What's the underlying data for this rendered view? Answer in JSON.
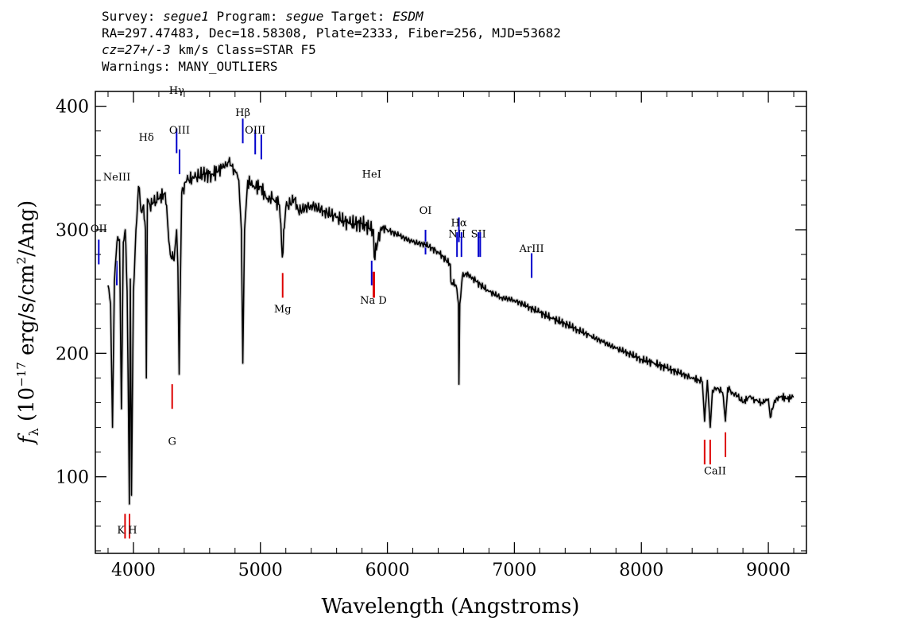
{
  "header": {
    "line1_prefix": "Survey: ",
    "survey": "segue1",
    "line1_mid": " Program: ",
    "program": "segue",
    "line1_mid2": " Target: ",
    "target": "ESDM",
    "line2": "RA=297.47483, Dec=18.58308, Plate=2333, Fiber=256, MJD=53682",
    "line3_cz": "cz=27+/-3",
    "line3_rest": " km/s Class=STAR F5",
    "line4": "Warnings: MANY_OUTLIERS"
  },
  "chart_data": {
    "type": "line",
    "xlabel": "Wavelength (Angstroms)",
    "ylabel_parts": [
      "f",
      "λ",
      " (10",
      "−17",
      " erg/s/cm",
      "2",
      "/Ang)"
    ],
    "xlim": [
      3700,
      9300
    ],
    "ylim": [
      38,
      412
    ],
    "x_ticks": [
      4000,
      5000,
      6000,
      7000,
      8000,
      9000
    ],
    "x_tick_labels": [
      "4000",
      "5000",
      "6000",
      "7000",
      "8000",
      "9000"
    ],
    "y_ticks": [
      100,
      200,
      300,
      400
    ],
    "y_tick_labels": [
      "100",
      "200",
      "300",
      "400"
    ],
    "grid": false,
    "series": [
      {
        "color": "#000000",
        "x": [
          3800,
          3820,
          3835,
          3850,
          3870,
          3890,
          3905,
          3920,
          3935,
          3950,
          3960,
          3968,
          3975,
          3985,
          4000,
          4020,
          4040,
          4060,
          4080,
          4095,
          4102,
          4110,
          4130,
          4160,
          4200,
          4250,
          4290,
          4320,
          4340,
          4350,
          4360,
          4380,
          4420,
          4480,
          4550,
          4620,
          4700,
          4750,
          4800,
          4830,
          4850,
          4861,
          4875,
          4900,
          4950,
          5000,
          5050,
          5100,
          5150,
          5172,
          5200,
          5270,
          5300,
          5400,
          5500,
          5600,
          5700,
          5800,
          5890,
          5896,
          5950,
          6000,
          6100,
          6200,
          6300,
          6400,
          6495,
          6500,
          6540,
          6560,
          6563,
          6570,
          6590,
          6620,
          6700,
          6800,
          6900,
          7000,
          7100,
          7200,
          7300,
          7400,
          7500,
          7600,
          7700,
          7800,
          7900,
          8000,
          8100,
          8200,
          8300,
          8400,
          8480,
          8498,
          8520,
          8542,
          8560,
          8600,
          8640,
          8662,
          8680,
          8720,
          8760,
          8800,
          8850,
          8900,
          8950,
          9000,
          9015,
          9050,
          9100,
          9150,
          9200
        ],
        "y": [
          255,
          240,
          140,
          258,
          290,
          292,
          155,
          290,
          300,
          250,
          160,
          78,
          260,
          85,
          250,
          300,
          335,
          315,
          320,
          300,
          180,
          325,
          320,
          322,
          325,
          330,
          280,
          275,
          300,
          270,
          183,
          330,
          340,
          342,
          345,
          345,
          350,
          355,
          348,
          340,
          300,
          192,
          300,
          340,
          335,
          335,
          325,
          325,
          320,
          278,
          318,
          325,
          315,
          320,
          315,
          310,
          305,
          305,
          300,
          278,
          302,
          300,
          295,
          290,
          288,
          282,
          272,
          258,
          255,
          240,
          175,
          240,
          262,
          265,
          258,
          250,
          245,
          243,
          238,
          233,
          228,
          224,
          219,
          214,
          209,
          204,
          200,
          195,
          192,
          188,
          184,
          180,
          177,
          145,
          178,
          140,
          170,
          172,
          168,
          145,
          172,
          168,
          165,
          160,
          165,
          162,
          160,
          163,
          148,
          162,
          165,
          163,
          165
        ]
      }
    ],
    "emission_lines": [
      {
        "label": "OII",
        "x": 3727
      },
      {
        "label": "NeIII",
        "x": 3869
      },
      {
        "label": "Hδ",
        "x": 4102
      },
      {
        "label": "Hγ",
        "x": 4340
      },
      {
        "label": "OIII",
        "x": 4363
      },
      {
        "label": "Hβ",
        "x": 4861
      },
      {
        "label": "OIII",
        "x": 4959
      },
      {
        "label": "OIII",
        "x": 5007
      },
      {
        "label": "HeI",
        "x": 5876
      },
      {
        "label": "OI",
        "x": 6300
      },
      {
        "label": "NII",
        "x": 6548
      },
      {
        "label": "Hα",
        "x": 6563
      },
      {
        "label": "NII",
        "x": 6583
      },
      {
        "label": "SII",
        "x": 6717
      },
      {
        "label": "SII",
        "x": 6731
      },
      {
        "label": "ArIII",
        "x": 7136
      }
    ],
    "absorption_lines": [
      {
        "label": "K",
        "x": 3934
      },
      {
        "label": "H",
        "x": 3969
      },
      {
        "label": "G",
        "x": 4305
      },
      {
        "label": "Mg",
        "x": 5175
      },
      {
        "label": "Na",
        "x": 5890
      },
      {
        "label": "D",
        "x": 5896
      },
      {
        "label": "CaII",
        "x": 8498
      },
      {
        "label": "CaII",
        "x": 8542
      },
      {
        "label": "CaII",
        "x": 8662
      }
    ],
    "emission_color": "#0000cc",
    "absorption_color": "#dd0000"
  }
}
